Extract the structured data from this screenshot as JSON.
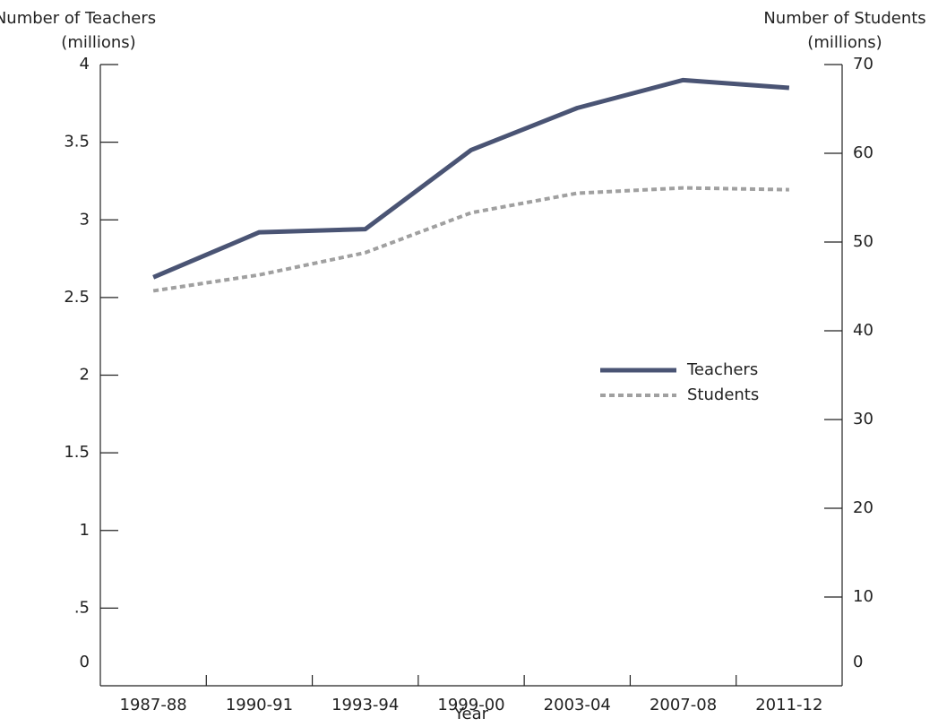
{
  "chart_data": {
    "type": "line",
    "y_label": [
      "Number of Teachers",
      "(millions)"
    ],
    "y2_label": [
      "Number of Students",
      "(millions)"
    ],
    "x_label": "Year",
    "categories": [
      "1987-88",
      "1990-91",
      "1993-94",
      "1999-00",
      "2003-04",
      "2007-08",
      "2011-12"
    ],
    "series": [
      {
        "name": "Teachers",
        "color": "#4a5474",
        "style": "solid",
        "values": [
          2.63,
          2.92,
          2.94,
          3.45,
          3.72,
          3.9,
          3.85
        ]
      },
      {
        "name": "Students",
        "color": "#a0a0a0",
        "style": "dashed",
        "axis": "y2",
        "values": [
          44.5,
          46.3,
          48.8,
          53.3,
          55.5,
          56.1,
          55.9
        ]
      }
    ],
    "ylim": [
      0,
      4
    ],
    "yticks": [
      0,
      {
        "value": 0.5,
        "label": ".5"
      },
      1,
      1.5,
      2,
      2.5,
      3,
      3.5,
      4
    ],
    "y2lim": [
      0,
      70
    ],
    "y2ticks": [
      0,
      10,
      20,
      30,
      40,
      50,
      60,
      70
    ],
    "legend": "right"
  }
}
